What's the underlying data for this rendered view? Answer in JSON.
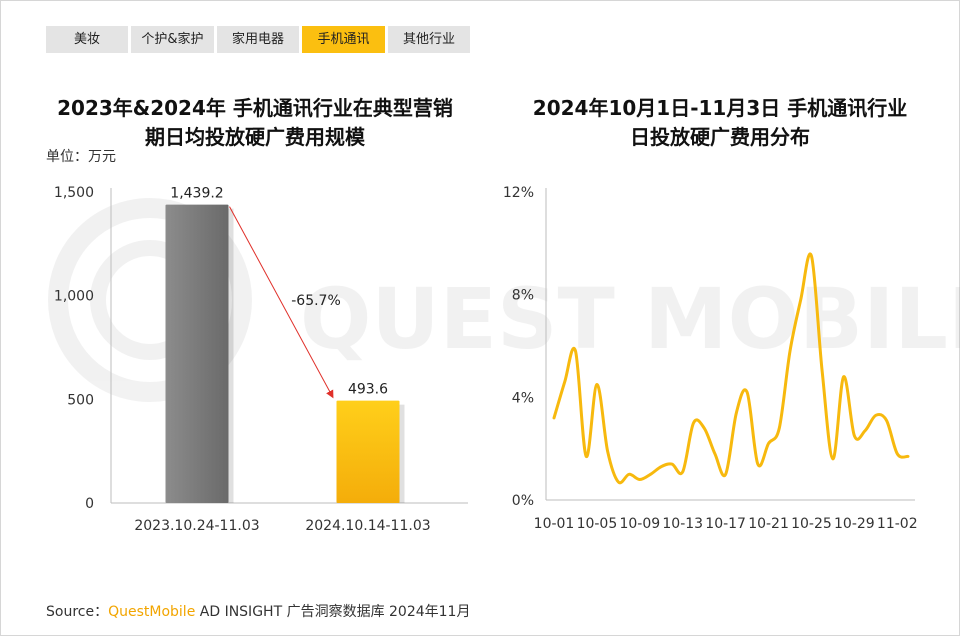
{
  "tabs": [
    {
      "label": "美妆",
      "active": false
    },
    {
      "label": "个护&家护",
      "active": false
    },
    {
      "label": "家用电器",
      "active": false
    },
    {
      "label": "手机通讯",
      "active": true
    },
    {
      "label": "其他行业",
      "active": false
    }
  ],
  "watermark": "QUEST MOBILE",
  "left_chart": {
    "title_line1": "2023年&2024年 手机通讯行业在典型营销",
    "title_line2": "期日均投放硬广费用规模",
    "unit": "单位：万元",
    "change_label": "-65.7%"
  },
  "right_chart": {
    "title_line1": "2024年10月1日-11月3日 手机通讯行业",
    "title_line2": "日投放硬广费用分布"
  },
  "source": {
    "prefix": "Source：",
    "brand": "QuestMobile",
    "rest": " AD INSIGHT 广告洞察数据库 2024年11月"
  },
  "colors": {
    "accent": "#fbbf10",
    "bar_gray": "#7a7a7a",
    "bar_yellow": "#fbbf10",
    "arrow": "#e0302a"
  },
  "chart_data": [
    {
      "type": "bar",
      "categories": [
        "2023.10.24-11.03",
        "2024.10.14-11.03"
      ],
      "values": [
        1439.2,
        493.6
      ],
      "value_labels": [
        "1,439.2",
        "493.6"
      ],
      "yticks": [
        "0",
        "500",
        "1,000",
        "1,500"
      ],
      "ytick_values": [
        0,
        500,
        1000,
        1500
      ],
      "ylim": [
        0,
        1500
      ],
      "grid": false
    },
    {
      "type": "line",
      "x": [
        "10-01",
        "10-02",
        "10-03",
        "10-04",
        "10-05",
        "10-06",
        "10-07",
        "10-08",
        "10-09",
        "10-10",
        "10-11",
        "10-12",
        "10-13",
        "10-14",
        "10-15",
        "10-16",
        "10-17",
        "10-18",
        "10-19",
        "10-20",
        "10-21",
        "10-22",
        "10-23",
        "10-24",
        "10-25",
        "10-26",
        "10-27",
        "10-28",
        "10-29",
        "10-30",
        "10-31",
        "11-01",
        "11-02",
        "11-03"
      ],
      "y": [
        3.2,
        4.6,
        5.8,
        1.7,
        4.5,
        1.9,
        0.7,
        1.0,
        0.8,
        1.0,
        1.3,
        1.4,
        1.1,
        3.0,
        2.8,
        1.8,
        1.0,
        3.4,
        4.2,
        1.4,
        2.2,
        2.8,
        5.8,
        7.8,
        9.5,
        5.0,
        1.6,
        4.8,
        2.5,
        2.7,
        3.3,
        3.1,
        1.8,
        1.7
      ],
      "xticks": [
        "10-01",
        "10-05",
        "10-09",
        "10-13",
        "10-17",
        "10-21",
        "10-25",
        "10-29",
        "11-02"
      ],
      "yticks": [
        "0%",
        "4%",
        "8%",
        "12%"
      ],
      "ytick_values": [
        0,
        4,
        8,
        12
      ],
      "ylim": [
        0,
        12
      ],
      "grid": false
    }
  ]
}
